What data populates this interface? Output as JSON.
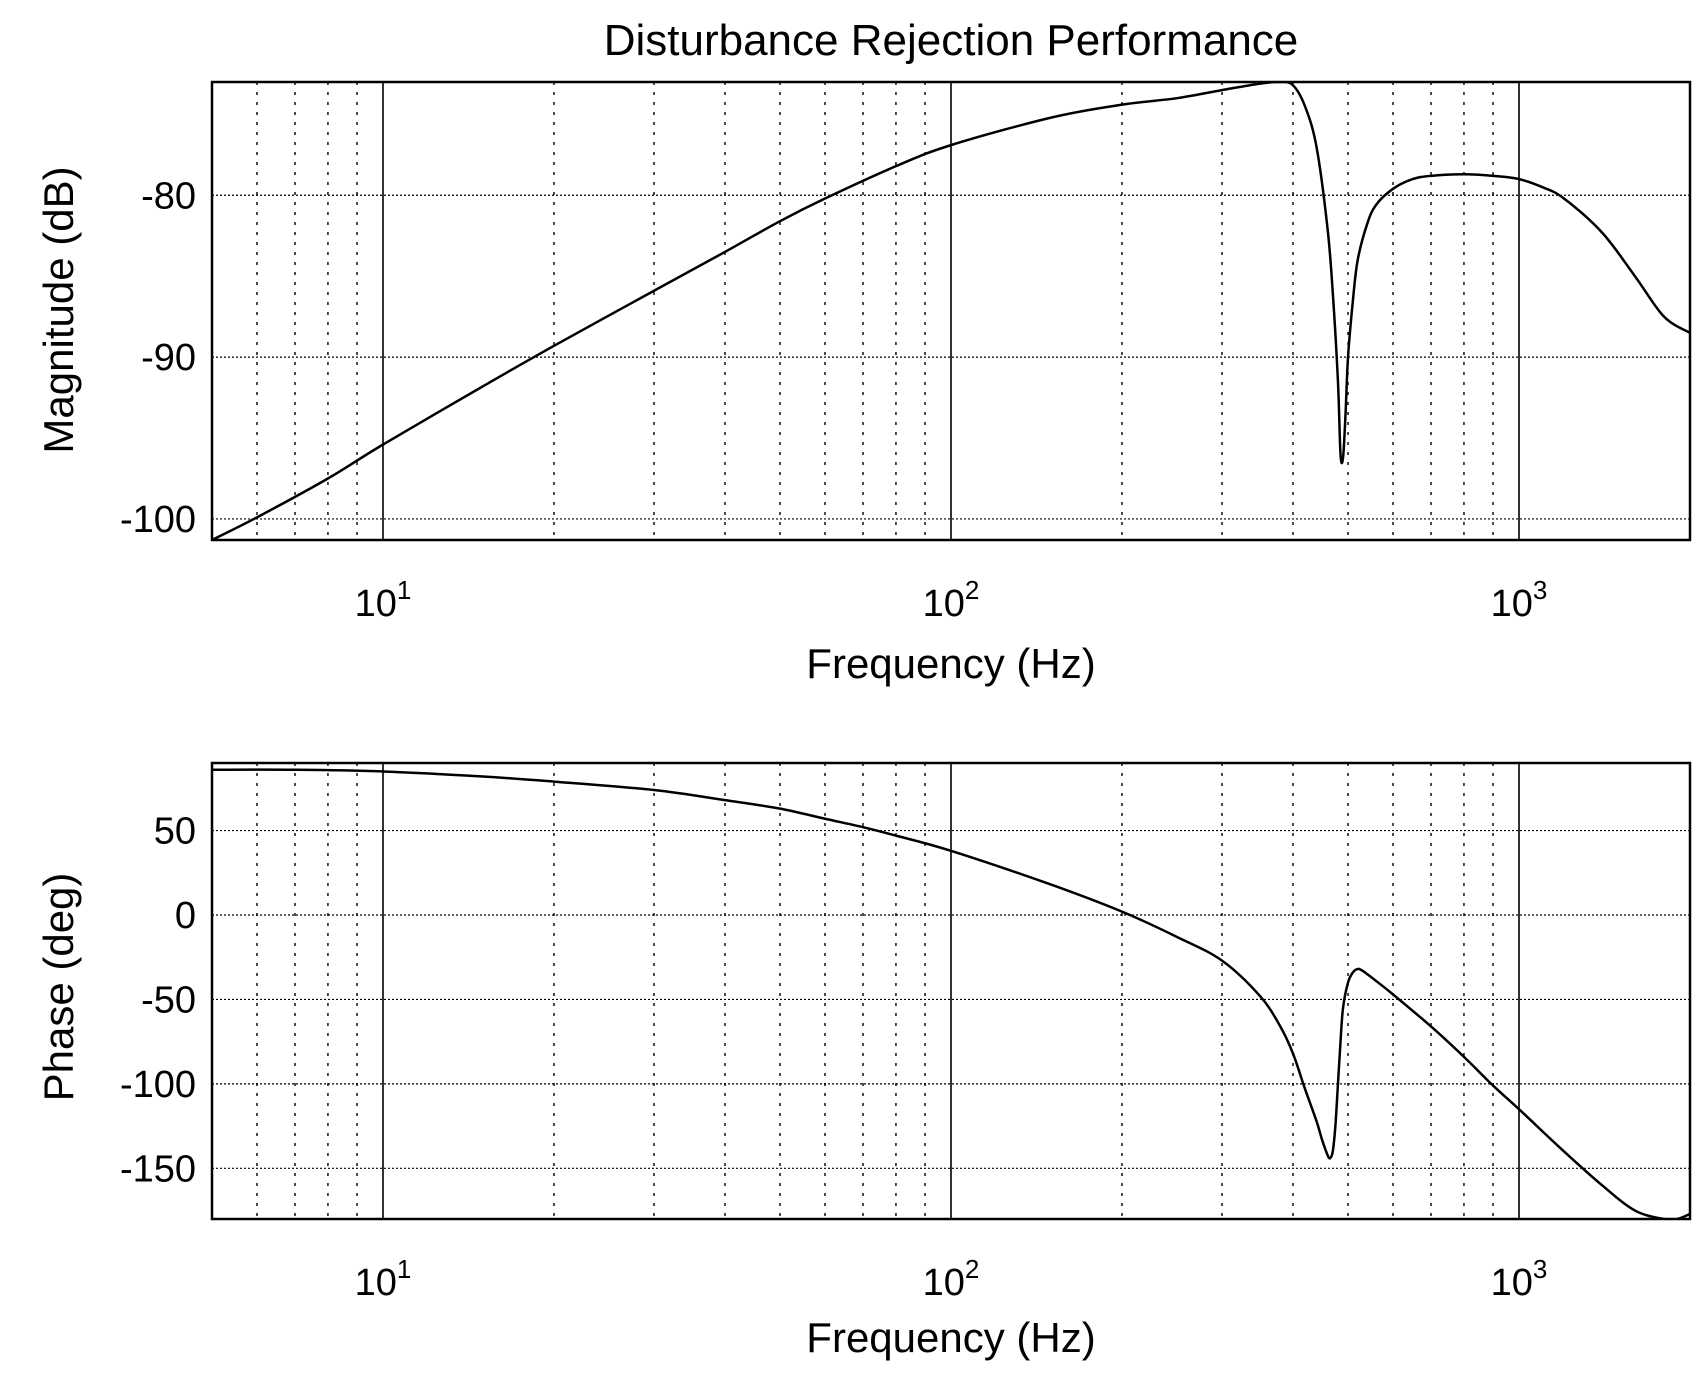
{
  "chart_data": [
    {
      "type": "line",
      "title": "Disturbance Rejection Performance",
      "xlabel": "Frequency (Hz)",
      "ylabel": "Magnitude (dB)",
      "x_scale": "log",
      "xlim": [
        5,
        2000
      ],
      "ylim": [
        -101.3,
        -73
      ],
      "grid": true,
      "x_ticks": [
        {
          "value": 10,
          "base": "10",
          "exp": "1"
        },
        {
          "value": 100,
          "base": "10",
          "exp": "2"
        },
        {
          "value": 1000,
          "base": "10",
          "exp": "3"
        }
      ],
      "y_ticks": [
        {
          "value": -80,
          "label": "-80"
        },
        {
          "value": -90,
          "label": "-90"
        },
        {
          "value": -100,
          "label": "-100"
        }
      ],
      "series": [
        {
          "x": [
            5,
            6,
            8,
            10,
            15,
            20,
            30,
            40,
            50,
            60,
            80,
            100,
            150,
            200,
            250,
            300,
            350,
            380,
            400,
            420,
            440,
            460,
            470,
            480,
            485,
            490,
            495,
            500,
            510,
            520,
            540,
            560,
            600,
            650,
            700,
            800,
            900,
            1000,
            1100,
            1200,
            1400,
            1600,
            1800,
            2000
          ],
          "y": [
            -101.3,
            -99.9,
            -97.5,
            -95.4,
            -91.8,
            -89.3,
            -85.9,
            -83.5,
            -81.6,
            -80.2,
            -78.2,
            -76.9,
            -75.2,
            -74.4,
            -74.0,
            -73.5,
            -73.1,
            -73.0,
            -73.2,
            -74.5,
            -77.0,
            -82.0,
            -86.0,
            -91.5,
            -96.0,
            -96.2,
            -93.5,
            -90.0,
            -86.5,
            -84.0,
            -81.8,
            -80.6,
            -79.6,
            -79.0,
            -78.8,
            -78.7,
            -78.8,
            -79.0,
            -79.5,
            -80.2,
            -82.3,
            -85.0,
            -87.5,
            -88.5
          ]
        }
      ]
    },
    {
      "type": "line",
      "title": "",
      "xlabel": "Frequency (Hz)",
      "ylabel": "Phase (deg)",
      "x_scale": "log",
      "xlim": [
        5,
        2000
      ],
      "ylim": [
        -180,
        90
      ],
      "grid": true,
      "x_ticks": [
        {
          "value": 10,
          "base": "10",
          "exp": "1"
        },
        {
          "value": 100,
          "base": "10",
          "exp": "2"
        },
        {
          "value": 1000,
          "base": "10",
          "exp": "3"
        }
      ],
      "y_ticks": [
        {
          "value": 50,
          "label": "50"
        },
        {
          "value": 0,
          "label": "0"
        },
        {
          "value": -50,
          "label": "-50"
        },
        {
          "value": -100,
          "label": "-100"
        },
        {
          "value": -150,
          "label": "-150"
        }
      ],
      "series": [
        {
          "x": [
            5,
            7,
            10,
            15,
            20,
            30,
            40,
            50,
            60,
            70,
            80,
            100,
            150,
            200,
            250,
            300,
            350,
            380,
            400,
            420,
            440,
            450,
            460,
            465,
            470,
            475,
            480,
            485,
            490,
            500,
            510,
            520,
            530,
            560,
            600,
            700,
            800,
            900,
            1000,
            1200,
            1400,
            1600,
            1800,
            1900,
            2000
          ],
          "y": [
            86,
            86,
            85,
            82,
            79,
            74,
            68,
            63,
            57,
            52,
            47,
            38,
            18,
            2,
            -13,
            -27,
            -48,
            -66,
            -82,
            -103,
            -122,
            -133,
            -142,
            -144,
            -140,
            -125,
            -100,
            -75,
            -55,
            -40,
            -34,
            -32,
            -33,
            -39,
            -47,
            -66,
            -84,
            -101,
            -115,
            -140,
            -160,
            -175,
            -180,
            -180,
            -177
          ]
        }
      ]
    }
  ]
}
